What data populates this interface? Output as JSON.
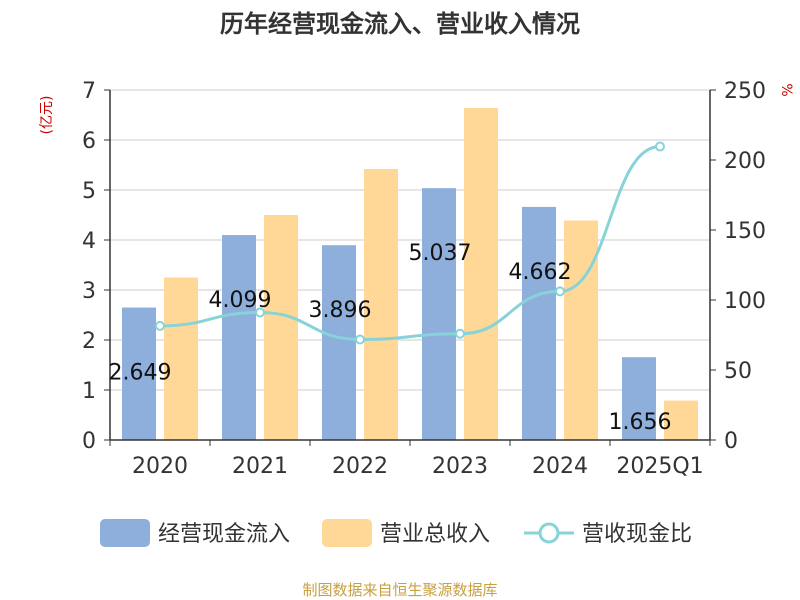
{
  "chart_data": {
    "type": "bar",
    "title": "历年经营现金流入、营业收入情况",
    "ylabel_left": "(亿元)",
    "ylabel_right": "%",
    "categories": [
      "2020",
      "2021",
      "2022",
      "2023",
      "2024",
      "2025Q1"
    ],
    "ylim_left": [
      0,
      7
    ],
    "yticks_left": [
      "0",
      "1",
      "2",
      "3",
      "4",
      "5",
      "6",
      "7"
    ],
    "ylim_right": [
      0,
      250
    ],
    "yticks_right": [
      "0",
      "50",
      "100",
      "150",
      "200",
      "250"
    ],
    "grid": true,
    "legend_position": "bottom",
    "series": [
      {
        "name": "经营现金流入",
        "type": "bar",
        "axis": "left",
        "color": "#8EAEDB",
        "values": [
          2.649,
          4.099,
          3.896,
          5.037,
          4.662,
          1.656
        ],
        "labels": [
          "2.649",
          "4.099",
          "3.896",
          "5.037",
          "4.662",
          "1.656"
        ]
      },
      {
        "name": "营业总收入",
        "type": "bar",
        "axis": "left",
        "color": "#FFD898",
        "values": [
          3.25,
          4.5,
          5.42,
          6.64,
          4.39,
          0.79
        ]
      },
      {
        "name": "营收现金比",
        "type": "line",
        "axis": "right",
        "color": "#86D3D8",
        "values": [
          81.5,
          91.1,
          71.8,
          75.9,
          106.2,
          209.6
        ]
      }
    ]
  },
  "source_text": "制图数据来自恒生聚源数据库"
}
